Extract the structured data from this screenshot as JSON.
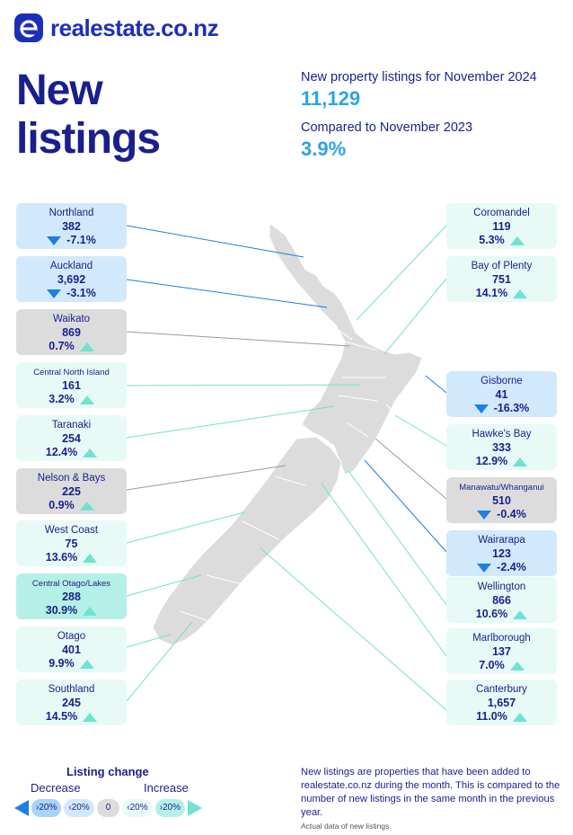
{
  "brand": {
    "name": "realestate",
    "tld": ".co.nz"
  },
  "headline": "New listings",
  "stats": {
    "label1": "New property listings for November 2024",
    "value1": "11,129",
    "label2": "Compared to November 2023",
    "value2": "3.9%"
  },
  "regions": [
    {
      "name": "Northland",
      "count": "382",
      "change": "-7.1%",
      "dir": "down",
      "style": "dec"
    },
    {
      "name": "Auckland",
      "count": "3,692",
      "change": "-3.1%",
      "dir": "down",
      "style": "dec"
    },
    {
      "name": "Waikato",
      "count": "869",
      "change": "0.7%",
      "dir": "up",
      "style": "zero"
    },
    {
      "name": "Central North Island",
      "count": "161",
      "change": "3.2%",
      "dir": "up",
      "style": "inc"
    },
    {
      "name": "Taranaki",
      "count": "254",
      "change": "12.4%",
      "dir": "up",
      "style": "inc"
    },
    {
      "name": "Nelson & Bays",
      "count": "225",
      "change": "0.9%",
      "dir": "up",
      "style": "zero"
    },
    {
      "name": "West Coast",
      "count": "75",
      "change": "13.6%",
      "dir": "up",
      "style": "inc"
    },
    {
      "name": "Central Otago/Lakes",
      "count": "288",
      "change": "30.9%",
      "dir": "up",
      "style": "big"
    },
    {
      "name": "Otago",
      "count": "401",
      "change": "9.9%",
      "dir": "up",
      "style": "inc"
    },
    {
      "name": "Southland",
      "count": "245",
      "change": "14.5%",
      "dir": "up",
      "style": "inc"
    },
    {
      "name": "Coromandel",
      "count": "119",
      "change": "5.3%",
      "dir": "up",
      "style": "inc"
    },
    {
      "name": "Bay of Plenty",
      "count": "751",
      "change": "14.1%",
      "dir": "up",
      "style": "inc"
    },
    {
      "name": "Gisborne",
      "count": "41",
      "change": "-16.3%",
      "dir": "down",
      "style": "dec"
    },
    {
      "name": "Hawke's Bay",
      "count": "333",
      "change": "12.9%",
      "dir": "up",
      "style": "inc"
    },
    {
      "name": "Manawatu/Whanganui",
      "count": "510",
      "change": "-0.4%",
      "dir": "down",
      "style": "zero"
    },
    {
      "name": "Wairarapa",
      "count": "123",
      "change": "-2.4%",
      "dir": "down",
      "style": "dec"
    },
    {
      "name": "Wellington",
      "count": "866",
      "change": "10.6%",
      "dir": "up",
      "style": "inc"
    },
    {
      "name": "Marlborough",
      "count": "137",
      "change": "7.0%",
      "dir": "up",
      "style": "inc"
    },
    {
      "name": "Canterbury",
      "count": "1,657",
      "change": "11.0%",
      "dir": "up",
      "style": "inc"
    }
  ],
  "legend": {
    "title": "Listing change",
    "decrease": "Decrease",
    "increase": "Increase",
    "pills": [
      "›20%",
      "‹20%",
      "0",
      "‹20%",
      "›20%"
    ]
  },
  "note": "New listings are properties that have been added to realestate.co.nz during the month. This is compared to the number of new listings in the same month in the previous year.",
  "note2": "Actual data of new listings.",
  "colors": {
    "navy": "#1a1f8c",
    "accent": "#2aa4e6",
    "decrease": "#1e7fe0",
    "increase": "#6fe3cf",
    "neutral": "#dcdcdc"
  }
}
